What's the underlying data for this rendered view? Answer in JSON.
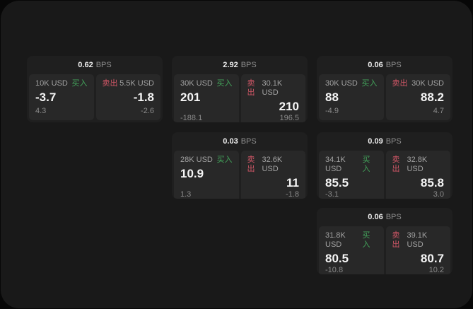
{
  "theme": {
    "outer_bg": "#070707",
    "window_bg": "#191919",
    "card_bg": "#1f1f1f",
    "panel_bg": "#282828",
    "buy_color": "#43a45b",
    "sell_color": "#cf5666",
    "price_color": "#f5f5f5",
    "muted_color": "#8a8a8a"
  },
  "labels": {
    "bps": "BPS",
    "buy": "买入",
    "sell": "卖出"
  },
  "cards": [
    {
      "bps": "0.62",
      "buy": {
        "notional": "10K USD",
        "price": "-3.7",
        "delta": "4.3"
      },
      "sell": {
        "notional": "5.5K USD",
        "price": "-1.8",
        "delta": "-2.6"
      }
    },
    {
      "bps": "2.92",
      "buy": {
        "notional": "30K USD",
        "price": "201",
        "delta": "-188.1"
      },
      "sell": {
        "notional": "30.1K USD",
        "price": "210",
        "delta": "196.5"
      }
    },
    {
      "bps": "0.06",
      "buy": {
        "notional": "30K USD",
        "price": "88",
        "delta": "-4.9"
      },
      "sell": {
        "notional": "30K USD",
        "price": "88.2",
        "delta": "4.7"
      }
    },
    {
      "bps": "0.03",
      "buy": {
        "notional": "28K USD",
        "price": "10.9",
        "delta": "1.3"
      },
      "sell": {
        "notional": "32.6K USD",
        "price": "11",
        "delta": "-1.8"
      }
    },
    {
      "bps": "0.09",
      "buy": {
        "notional": "34.1K USD",
        "price": "85.5",
        "delta": "-3.1"
      },
      "sell": {
        "notional": "32.8K USD",
        "price": "85.8",
        "delta": "3.0"
      }
    },
    {
      "bps": "0.06",
      "buy": {
        "notional": "31.8K USD",
        "price": "80.5",
        "delta": "-10.8"
      },
      "sell": {
        "notional": "39.1K USD",
        "price": "80.7",
        "delta": "10.2"
      }
    }
  ]
}
